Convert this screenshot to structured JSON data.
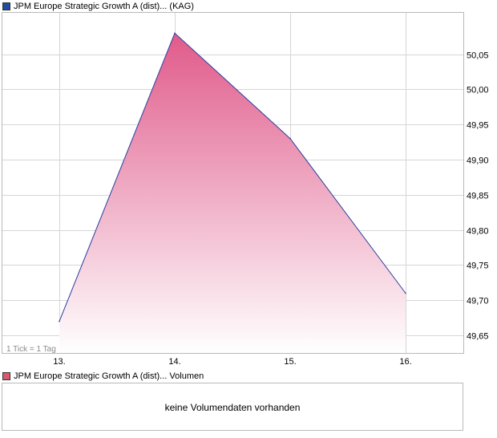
{
  "legend": {
    "price_series": "JPM Europe Strategic Growth A (dist)... (KAG)",
    "volume_series": "JPM Europe Strategic Growth A (dist)... Volumen"
  },
  "tick_note": "1 Tick = 1 Tag",
  "volume_empty_message": "keine Volumendaten vorhanden",
  "colors": {
    "line": "#2a3f9e",
    "fill_top": "#e05a8a",
    "fill_bottom": "#ffffff",
    "grid": "#d6d6d6",
    "frame": "#b9b9b9",
    "legend_price": "#1f4e9e",
    "legend_volume": "#d9586e"
  },
  "chart_data": {
    "type": "area",
    "title": "",
    "xlabel": "",
    "ylabel": "",
    "x_ticks": [
      "13.",
      "14.",
      "15.",
      "16."
    ],
    "y_ticks": [
      "49,65",
      "49,70",
      "49,75",
      "49,80",
      "49,85",
      "49,90",
      "49,95",
      "50,00",
      "50,05"
    ],
    "ylim": [
      49.625,
      50.11
    ],
    "grid": true,
    "series": [
      {
        "x": [
          "13.",
          "14.",
          "15.",
          "16."
        ],
        "values": [
          49.67,
          50.08,
          49.93,
          49.71
        ]
      }
    ]
  }
}
